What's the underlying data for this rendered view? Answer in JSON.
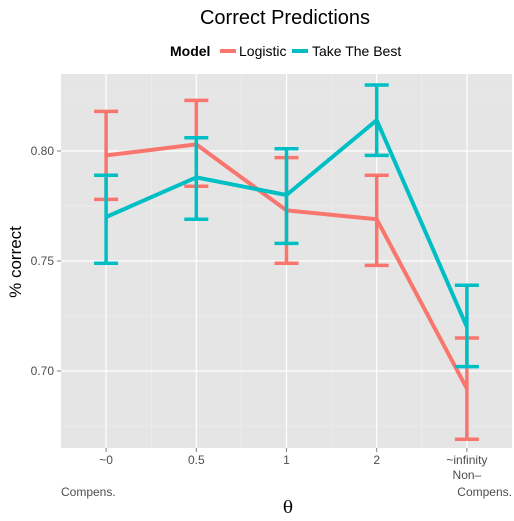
{
  "chart_data": {
    "type": "line",
    "title": "Correct Predictions",
    "xlabel": "θ",
    "ylabel": "% correct",
    "legend": {
      "title": "Model",
      "placement": "top"
    },
    "categories": [
      "~0",
      "0.5",
      "1",
      "2",
      "~infinity"
    ],
    "category_sublabels": [
      "",
      "",
      "",
      "",
      "Non–"
    ],
    "extreme_labels": {
      "left": "Compens.",
      "right": "Compens."
    },
    "ylim": [
      0.665,
      0.835
    ],
    "yticks": [
      0.7,
      0.75,
      0.8
    ],
    "ytick_labels": [
      "0.70",
      "0.75",
      "0.80"
    ],
    "grid": true,
    "error_bars": true,
    "series": [
      {
        "name": "Logistic",
        "color": "#F8766D",
        "values": [
          0.798,
          0.803,
          0.773,
          0.769,
          0.692
        ],
        "lower": [
          0.778,
          0.784,
          0.749,
          0.748,
          0.669
        ],
        "upper": [
          0.818,
          0.823,
          0.797,
          0.789,
          0.715
        ]
      },
      {
        "name": "Take The Best",
        "color": "#00BFC4",
        "values": [
          0.77,
          0.788,
          0.78,
          0.814,
          0.72
        ],
        "lower": [
          0.749,
          0.769,
          0.758,
          0.798,
          0.702
        ],
        "upper": [
          0.789,
          0.806,
          0.801,
          0.83,
          0.739
        ]
      }
    ]
  }
}
